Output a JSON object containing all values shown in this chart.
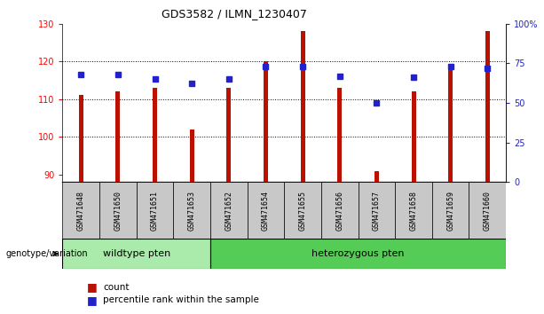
{
  "title": "GDS3582 / ILMN_1230407",
  "samples": [
    "GSM471648",
    "GSM471650",
    "GSM471651",
    "GSM471653",
    "GSM471652",
    "GSM471654",
    "GSM471655",
    "GSM471656",
    "GSM471657",
    "GSM471658",
    "GSM471659",
    "GSM471660"
  ],
  "counts": [
    111,
    112,
    113,
    102,
    113,
    120,
    128,
    113,
    91,
    112,
    119,
    128
  ],
  "percentile_ranks": [
    68,
    68,
    65,
    62,
    65,
    73,
    73,
    67,
    50,
    66,
    73,
    72
  ],
  "ylim_left": [
    88,
    130
  ],
  "ylim_right": [
    0,
    100
  ],
  "yticks_left": [
    90,
    100,
    110,
    120,
    130
  ],
  "yticks_right": [
    0,
    25,
    50,
    75,
    100
  ],
  "groups": [
    {
      "label": "wildtype pten",
      "start": 0,
      "end": 3,
      "color": "#aaeaaa"
    },
    {
      "label": "heterozygous pten",
      "start": 4,
      "end": 11,
      "color": "#55cc55"
    }
  ],
  "bar_color": "#BB1100",
  "marker_color": "#2222CC",
  "bg_color": "#C8C8C8",
  "legend_count_color": "#BB1100",
  "legend_percentile_color": "#2222CC",
  "wildtype_color": "#aaeaaa",
  "heterozygous_color": "#55cc55"
}
